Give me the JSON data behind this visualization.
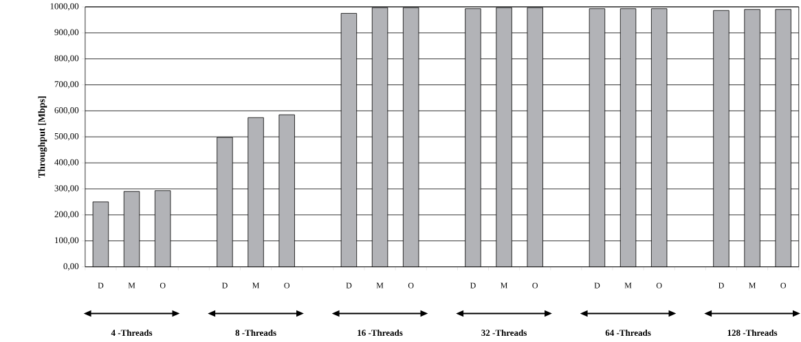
{
  "chart_data": {
    "type": "bar",
    "ylabel": "Throughput [Mbps]",
    "categories": [
      "D",
      "M",
      "O",
      null,
      "D",
      "M",
      "O",
      null,
      "D",
      "M",
      "O",
      null,
      "D",
      "M",
      "O",
      null,
      "D",
      "M",
      "O",
      null,
      "D",
      "M",
      "O"
    ],
    "values": [
      250,
      290,
      293,
      null,
      498,
      574,
      585,
      null,
      975,
      997,
      997,
      null,
      993,
      997,
      997,
      null,
      993,
      993,
      993,
      null,
      986,
      990,
      990
    ],
    "color": "#b2b3b7",
    "ylim": [
      0,
      1000
    ],
    "yticks": [
      {
        "value": 0,
        "label": "0,00"
      },
      {
        "value": 100,
        "label": "100,00"
      },
      {
        "value": 200,
        "label": "200,00"
      },
      {
        "value": 300,
        "label": "300,00"
      },
      {
        "value": 400,
        "label": "400,00"
      },
      {
        "value": 500,
        "label": "500,00"
      },
      {
        "value": 600,
        "label": "600,00"
      },
      {
        "value": 700,
        "label": "700,00"
      },
      {
        "value": 800,
        "label": "800,00"
      },
      {
        "value": 900,
        "label": "900,00"
      },
      {
        "value": 1000,
        "label": "1000,00"
      }
    ],
    "grid": "y",
    "annotations": [
      "4 -Threads",
      "8 -Threads",
      "16 -Threads",
      "32 -Threads",
      "64 -Threads",
      "128 -Threads"
    ]
  }
}
